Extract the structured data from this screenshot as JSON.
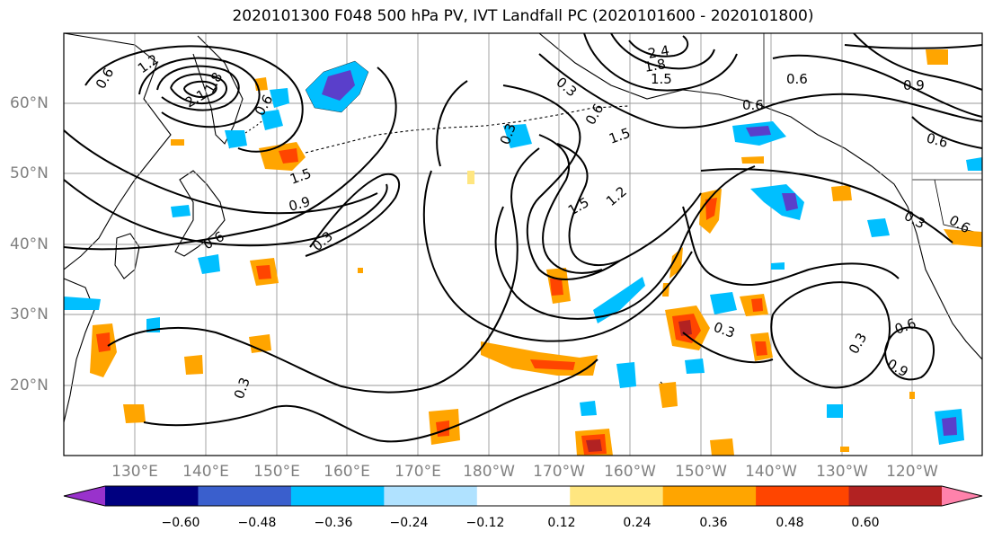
{
  "title": "2020101300 F048 500 hPa PV, IVT Landfall PC (2020101600 - 2020101800)",
  "map": {
    "region": "North Pacific",
    "lat_labels": [
      "60°N",
      "50°N",
      "40°N",
      "30°N",
      "20°N"
    ],
    "lon_labels": [
      "130°E",
      "140°E",
      "150°E",
      "160°E",
      "170°E",
      "180°W",
      "170°W",
      "160°W",
      "150°W",
      "140°W",
      "130°W",
      "120°W"
    ],
    "contour_labels": [
      "0.6",
      "1.2",
      "2.1",
      "1.8",
      "1.5",
      "0.9",
      "0.6",
      "0.3",
      "0.6",
      "0.3",
      "2.4",
      "1.8",
      "1.5",
      "0.3",
      "0.6",
      "1.5",
      "1.5",
      "1.2",
      "0.6",
      "0.6",
      "0.9",
      "0.6",
      "0.3",
      "0.6",
      "0.3",
      "0.3",
      "0.6",
      "0.9",
      "0.3"
    ],
    "shading_colors": {
      "neg_strong": "#5a3fcb",
      "neg_medium": "#00bfff",
      "neg_weak": "#b0e2ff",
      "pos_weak": "#ffe680",
      "pos_medium": "#ffa500",
      "pos_strong": "#ff4500",
      "pos_max": "#b22222"
    }
  },
  "colorbar": {
    "colors": [
      "#9932cc",
      "#000080",
      "#3a5fcd",
      "#00bfff",
      "#b0e2ff",
      "#ffffff",
      "#ffe680",
      "#ffa500",
      "#ff4500",
      "#b22222",
      "#ff82ab"
    ],
    "ticks": [
      "−0.60",
      "−0.48",
      "−0.36",
      "−0.24",
      "−0.12",
      "0.12",
      "0.24",
      "0.36",
      "0.48",
      "0.60"
    ]
  }
}
